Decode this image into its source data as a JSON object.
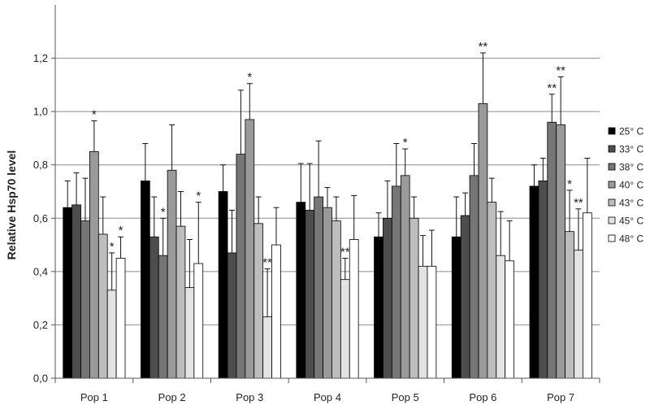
{
  "chart_data": {
    "type": "bar",
    "title": "",
    "xlabel": "",
    "ylabel": "Relative Hsp70 level",
    "ylim": [
      0,
      1.4
    ],
    "yticks": [
      "0,0",
      "0,2",
      "0,4",
      "0,6",
      "0,8",
      "1,0",
      "1,2"
    ],
    "grid": true,
    "legend_position": "right",
    "categories": [
      "Pop 1",
      "Pop 2",
      "Pop 3",
      "Pop 4",
      "Pop 5",
      "Pop 6",
      "Pop 7"
    ],
    "series": [
      {
        "name": "25° C",
        "color": "#000000",
        "values": [
          0.64,
          0.74,
          0.7,
          0.66,
          0.53,
          0.53,
          0.72
        ],
        "errors": [
          0.1,
          0.14,
          0.1,
          0.145,
          0.09,
          0.15,
          0.08
        ],
        "significance": [
          "",
          "",
          "",
          "",
          "",
          "",
          ""
        ]
      },
      {
        "name": "33° C",
        "color": "#4d4d4d",
        "values": [
          0.65,
          0.53,
          0.47,
          0.63,
          0.6,
          0.61,
          0.74
        ],
        "errors": [
          0.12,
          0.15,
          0.16,
          0.175,
          0.14,
          0.085,
          0.085
        ],
        "significance": [
          "",
          "",
          "",
          "",
          "",
          "",
          ""
        ]
      },
      {
        "name": "38° C",
        "color": "#767676",
        "values": [
          0.59,
          0.46,
          0.84,
          0.68,
          0.72,
          0.76,
          0.96
        ],
        "errors": [
          0.16,
          0.14,
          0.24,
          0.21,
          0.16,
          0.12,
          0.105
        ],
        "significance": [
          "",
          "*",
          "",
          "",
          "",
          "",
          "**"
        ]
      },
      {
        "name": "40° C",
        "color": "#9a9a9a",
        "values": [
          0.85,
          0.78,
          0.97,
          0.64,
          0.76,
          1.03,
          0.95
        ],
        "errors": [
          0.115,
          0.17,
          0.135,
          0.075,
          0.1,
          0.19,
          0.18
        ],
        "significance": [
          "*",
          "",
          "*",
          "",
          "*",
          "**",
          "**"
        ]
      },
      {
        "name": "43° C",
        "color": "#bdbdbd",
        "values": [
          0.54,
          0.57,
          0.58,
          0.59,
          0.6,
          0.66,
          0.55
        ],
        "errors": [
          0.14,
          0.13,
          0.1,
          0.09,
          0.08,
          0.09,
          0.155
        ],
        "significance": [
          "",
          "",
          "",
          "",
          "",
          "",
          "*"
        ]
      },
      {
        "name": "45° C",
        "color": "#e3e3e3",
        "values": [
          0.33,
          0.34,
          0.23,
          0.37,
          0.42,
          0.46,
          0.48
        ],
        "errors": [
          0.14,
          0.18,
          0.18,
          0.08,
          0.115,
          0.165,
          0.155
        ],
        "significance": [
          "*",
          "",
          "**",
          "**",
          "",
          "",
          "**"
        ]
      },
      {
        "name": "48° C",
        "color": "#ffffff",
        "values": [
          0.45,
          0.43,
          0.5,
          0.52,
          0.42,
          0.44,
          0.62
        ],
        "errors": [
          0.08,
          0.23,
          0.14,
          0.165,
          0.135,
          0.15,
          0.205
        ],
        "significance": [
          "*",
          "*",
          "",
          "",
          "",
          "",
          ""
        ]
      }
    ]
  }
}
